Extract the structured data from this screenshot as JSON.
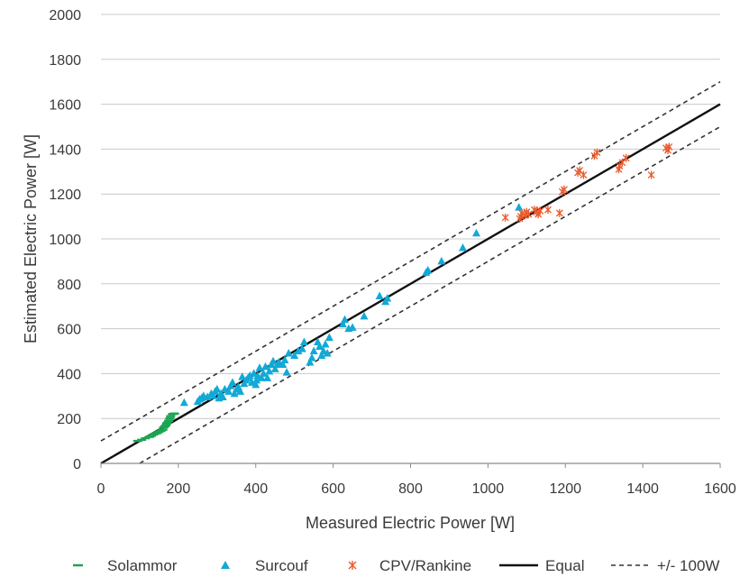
{
  "chart_data": {
    "type": "scatter",
    "xlabel": "Measured Electric Power [W]",
    "ylabel": "Estimated Electric Power [W]",
    "xlim": [
      0,
      1600
    ],
    "ylim": [
      0,
      2000
    ],
    "xticks": [
      0,
      200,
      400,
      600,
      800,
      1000,
      1200,
      1400,
      1600
    ],
    "yticks": [
      0,
      200,
      400,
      600,
      800,
      1000,
      1200,
      1400,
      1600,
      1800,
      2000
    ],
    "grid": "horizontal",
    "legend_position": "bottom",
    "series": [
      {
        "name": "Solammor",
        "marker": "dash",
        "color": "#1aa552",
        "points": [
          [
            95,
            100
          ],
          [
            105,
            105
          ],
          [
            115,
            112
          ],
          [
            125,
            118
          ],
          [
            130,
            122
          ],
          [
            135,
            128
          ],
          [
            140,
            132
          ],
          [
            145,
            135
          ],
          [
            150,
            140
          ],
          [
            155,
            145
          ],
          [
            160,
            150
          ],
          [
            162,
            160
          ],
          [
            165,
            165
          ],
          [
            168,
            170
          ],
          [
            170,
            178
          ],
          [
            172,
            182
          ],
          [
            175,
            190
          ],
          [
            178,
            200
          ],
          [
            180,
            210
          ],
          [
            185,
            220
          ],
          [
            190,
            222
          ]
        ]
      },
      {
        "name": "Surcouf",
        "marker": "triangle",
        "color": "#12a9d6",
        "points": [
          [
            215,
            270
          ],
          [
            250,
            275
          ],
          [
            255,
            285
          ],
          [
            260,
            290
          ],
          [
            265,
            300
          ],
          [
            275,
            295
          ],
          [
            285,
            310
          ],
          [
            290,
            300
          ],
          [
            295,
            320
          ],
          [
            300,
            330
          ],
          [
            305,
            290
          ],
          [
            310,
            310
          ],
          [
            315,
            295
          ],
          [
            320,
            330
          ],
          [
            330,
            320
          ],
          [
            335,
            345
          ],
          [
            340,
            360
          ],
          [
            345,
            310
          ],
          [
            350,
            330
          ],
          [
            355,
            340
          ],
          [
            360,
            320
          ],
          [
            365,
            385
          ],
          [
            370,
            355
          ],
          [
            375,
            370
          ],
          [
            380,
            380
          ],
          [
            385,
            390
          ],
          [
            390,
            360
          ],
          [
            395,
            400
          ],
          [
            400,
            350
          ],
          [
            402,
            370
          ],
          [
            405,
            390
          ],
          [
            410,
            425
          ],
          [
            415,
            380
          ],
          [
            420,
            400
          ],
          [
            425,
            430
          ],
          [
            430,
            380
          ],
          [
            435,
            410
          ],
          [
            440,
            440
          ],
          [
            445,
            455
          ],
          [
            450,
            420
          ],
          [
            455,
            440
          ],
          [
            460,
            450
          ],
          [
            470,
            440
          ],
          [
            475,
            460
          ],
          [
            480,
            405
          ],
          [
            485,
            490
          ],
          [
            500,
            480
          ],
          [
            510,
            500
          ],
          [
            520,
            510
          ],
          [
            525,
            540
          ],
          [
            540,
            450
          ],
          [
            545,
            470
          ],
          [
            550,
            500
          ],
          [
            560,
            540
          ],
          [
            565,
            520
          ],
          [
            570,
            480
          ],
          [
            575,
            500
          ],
          [
            580,
            530
          ],
          [
            585,
            490
          ],
          [
            590,
            560
          ],
          [
            625,
            620
          ],
          [
            630,
            640
          ],
          [
            640,
            600
          ],
          [
            650,
            605
          ],
          [
            680,
            655
          ],
          [
            720,
            745
          ],
          [
            735,
            720
          ],
          [
            740,
            735
          ],
          [
            840,
            850
          ],
          [
            845,
            860
          ],
          [
            880,
            900
          ],
          [
            935,
            960
          ],
          [
            970,
            1025
          ],
          [
            1080,
            1140
          ]
        ]
      },
      {
        "name": "CPV/Rankine",
        "marker": "asterisk",
        "color": "#ea5a2c",
        "points": [
          [
            1045,
            1095
          ],
          [
            1082,
            1090
          ],
          [
            1085,
            1100
          ],
          [
            1088,
            1115
          ],
          [
            1095,
            1105
          ],
          [
            1100,
            1120
          ],
          [
            1105,
            1110
          ],
          [
            1120,
            1130
          ],
          [
            1125,
            1120
          ],
          [
            1130,
            1110
          ],
          [
            1135,
            1125
          ],
          [
            1155,
            1130
          ],
          [
            1185,
            1115
          ],
          [
            1192,
            1210
          ],
          [
            1197,
            1220
          ],
          [
            1232,
            1295
          ],
          [
            1237,
            1305
          ],
          [
            1247,
            1285
          ],
          [
            1275,
            1370
          ],
          [
            1282,
            1385
          ],
          [
            1338,
            1310
          ],
          [
            1340,
            1325
          ],
          [
            1347,
            1340
          ],
          [
            1357,
            1360
          ],
          [
            1422,
            1285
          ],
          [
            1460,
            1405
          ],
          [
            1465,
            1395
          ],
          [
            1468,
            1410
          ]
        ]
      }
    ],
    "lines": [
      {
        "name": "Equal",
        "style": "solid",
        "color": "#111111",
        "x": [
          0,
          1600
        ],
        "y": [
          0,
          1600
        ]
      },
      {
        "name": "+/- 100W",
        "style": "dashed",
        "color": "#333333",
        "x": [
          0,
          1600
        ],
        "y": [
          100,
          1700
        ]
      },
      {
        "name": "+/- 100W",
        "style": "dashed",
        "color": "#333333",
        "x": [
          100,
          1600
        ],
        "y": [
          0,
          1500
        ]
      }
    ],
    "legend": [
      "Solammor",
      "Surcouf",
      "CPV/Rankine",
      "Equal",
      "+/- 100W"
    ]
  }
}
